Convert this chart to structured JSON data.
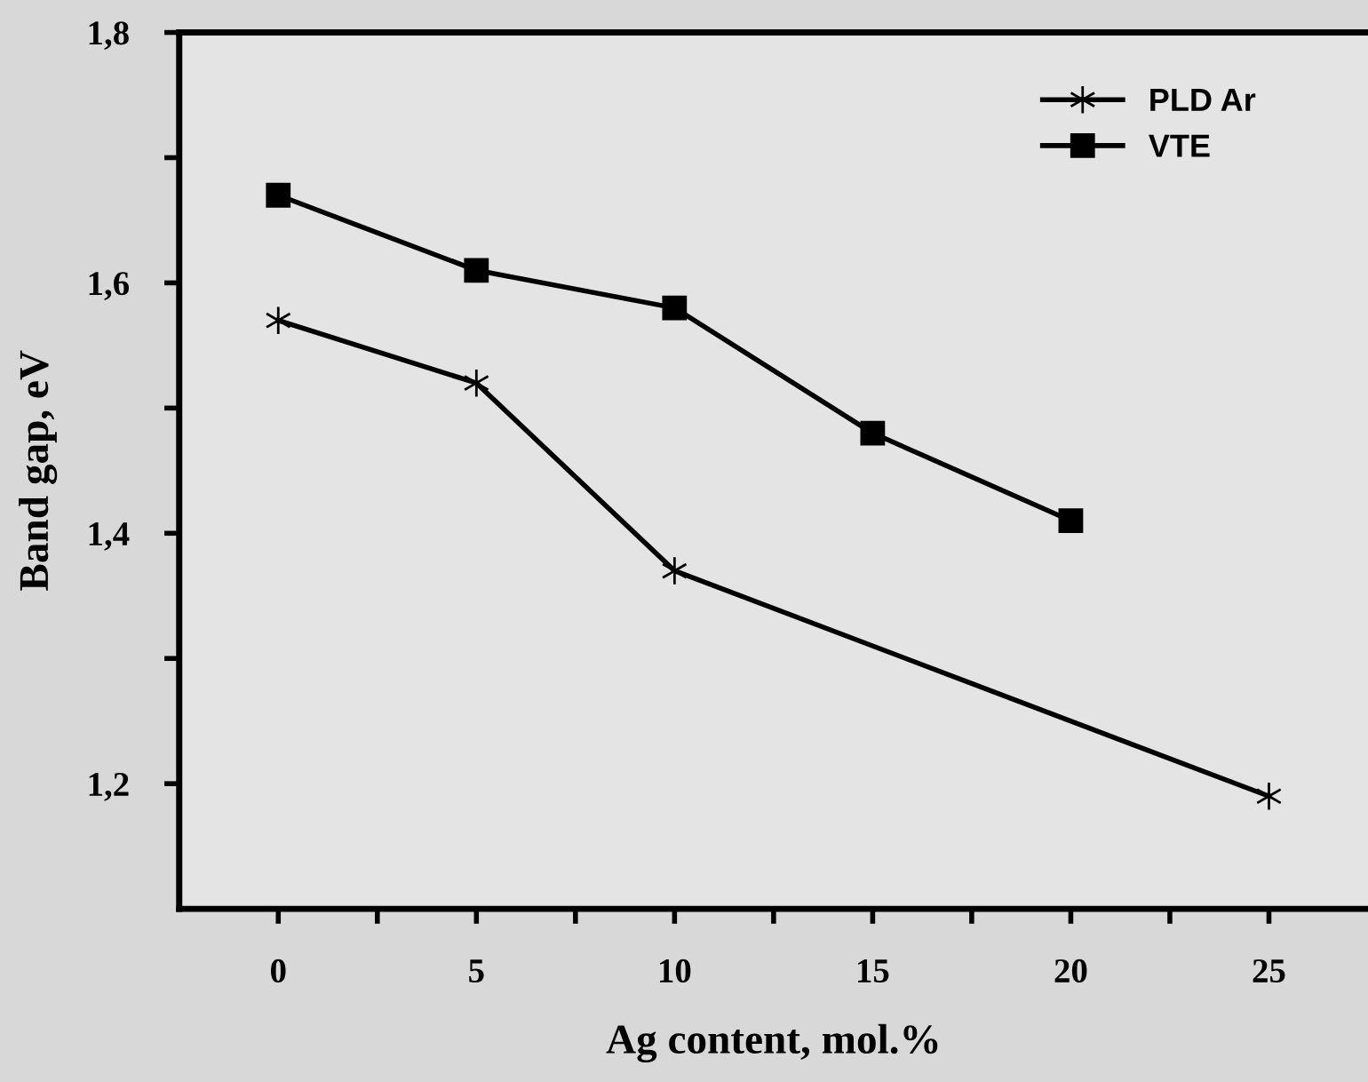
{
  "chart_data": {
    "type": "line",
    "xlabel": "Ag content, mol.%",
    "ylabel": "Band gap, eV",
    "x": [
      0,
      5,
      10,
      15,
      20,
      25
    ],
    "series": [
      {
        "name": "PLD Ar",
        "color": "#000000",
        "marker": "cross",
        "values": [
          1.57,
          1.52,
          1.37,
          null,
          null,
          1.19
        ]
      },
      {
        "name": "VTE",
        "color": "#000000",
        "marker": "square",
        "values": [
          1.67,
          1.61,
          1.58,
          1.48,
          1.41,
          null
        ]
      }
    ],
    "xlim": [
      -2.5,
      27.5
    ],
    "ylim": [
      1.1,
      1.8
    ],
    "xticks": [
      0,
      {
        "value": 2.5,
        "label": null
      },
      5,
      {
        "value": 7.5,
        "label": null
      },
      10,
      {
        "value": 12.5,
        "label": null
      },
      15,
      {
        "value": 17.5,
        "label": null
      },
      20,
      {
        "value": 22.5,
        "label": null
      },
      25
    ],
    "yticks": [
      {
        "value": 1.2,
        "label": "1,2"
      },
      {
        "value": 1.3,
        "label": null
      },
      {
        "value": 1.4,
        "label": "1,4"
      },
      {
        "value": 1.5,
        "label": null
      },
      {
        "value": 1.6,
        "label": "1,6"
      },
      {
        "value": 1.7,
        "label": null
      },
      {
        "value": 1.8,
        "label": "1,8"
      }
    ],
    "grid": false,
    "legend": "top right",
    "line_style": "solid"
  }
}
